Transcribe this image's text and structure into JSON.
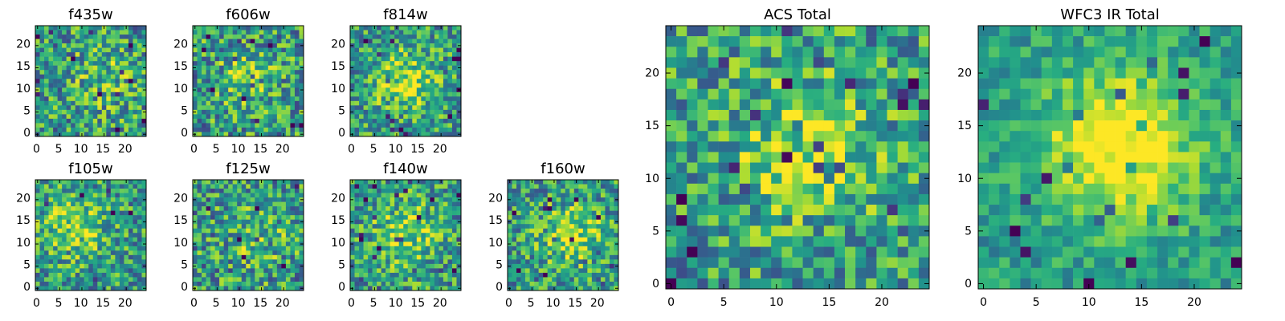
{
  "colors": {
    "colormap": "viridis",
    "axes_frame": "#000000",
    "background": "#ffffff"
  },
  "chart_data": [
    {
      "type": "heatmap",
      "title": "f435w",
      "colormap": "viridis",
      "grid_size": 25,
      "peak_center": [
        15,
        13
      ],
      "signal": "low",
      "xticks": [
        "0",
        "5",
        "10",
        "15",
        "20"
      ],
      "yticks": [
        "0",
        "5",
        "10",
        "15",
        "20"
      ],
      "xlim": [
        0,
        24
      ],
      "ylim": [
        0,
        24
      ]
    },
    {
      "type": "heatmap",
      "title": "f606w",
      "colormap": "viridis",
      "grid_size": 25,
      "peak_center": [
        12,
        13
      ],
      "signal": "low",
      "xticks": [
        "0",
        "5",
        "10",
        "15",
        "20"
      ],
      "yticks": [
        "0",
        "5",
        "10",
        "15",
        "20"
      ],
      "xlim": [
        0,
        24
      ],
      "ylim": [
        0,
        24
      ]
    },
    {
      "type": "heatmap",
      "title": "f814w",
      "colormap": "viridis",
      "grid_size": 25,
      "peak_center": [
        12,
        12
      ],
      "signal": "medium",
      "xticks": [
        "0",
        "5",
        "10",
        "15",
        "20"
      ],
      "yticks": [
        "0",
        "5",
        "10",
        "15",
        "20"
      ],
      "xlim": [
        0,
        24
      ],
      "ylim": [
        0,
        24
      ]
    },
    {
      "type": "heatmap",
      "title": "f105w",
      "colormap": "viridis",
      "grid_size": 25,
      "peak_center": [
        8,
        14
      ],
      "signal": "medium",
      "xticks": [
        "0",
        "5",
        "10",
        "15",
        "20"
      ],
      "yticks": [
        "0",
        "5",
        "10",
        "15",
        "20"
      ],
      "xlim": [
        0,
        24
      ],
      "ylim": [
        0,
        24
      ]
    },
    {
      "type": "heatmap",
      "title": "f125w",
      "colormap": "viridis",
      "grid_size": 25,
      "peak_center": [
        14,
        12
      ],
      "signal": "low",
      "xticks": [
        "0",
        "5",
        "10",
        "15",
        "20"
      ],
      "yticks": [
        "0",
        "5",
        "10",
        "15",
        "20"
      ],
      "xlim": [
        0,
        24
      ],
      "ylim": [
        0,
        24
      ]
    },
    {
      "type": "heatmap",
      "title": "f140w",
      "colormap": "viridis",
      "grid_size": 25,
      "peak_center": [
        12,
        12
      ],
      "signal": "medium",
      "xticks": [
        "0",
        "5",
        "10",
        "15",
        "20"
      ],
      "yticks": [
        "0",
        "5",
        "10",
        "15",
        "20"
      ],
      "xlim": [
        0,
        24
      ],
      "ylim": [
        0,
        24
      ]
    },
    {
      "type": "heatmap",
      "title": "f160w",
      "colormap": "viridis",
      "grid_size": 25,
      "peak_center": [
        14,
        12
      ],
      "signal": "medium",
      "xticks": [
        "0",
        "5",
        "10",
        "15",
        "20"
      ],
      "yticks": [
        "0",
        "5",
        "10",
        "15",
        "20"
      ],
      "xlim": [
        0,
        24
      ],
      "ylim": [
        0,
        24
      ]
    },
    {
      "type": "heatmap",
      "title": "ACS Total",
      "colormap": "viridis",
      "grid_size": 25,
      "peak_center": [
        13,
        13
      ],
      "signal": "medium",
      "xticks": [
        "0",
        "5",
        "10",
        "15",
        "20"
      ],
      "yticks": [
        "0",
        "5",
        "10",
        "15",
        "20"
      ],
      "xlim": [
        0,
        24
      ],
      "ylim": [
        0,
        24
      ]
    },
    {
      "type": "heatmap",
      "title": "WFC3 IR Total",
      "colormap": "viridis",
      "grid_size": 25,
      "peak_center": [
        13,
        13
      ],
      "signal": "high",
      "xticks": [
        "0",
        "5",
        "10",
        "15",
        "20"
      ],
      "yticks": [
        "0",
        "5",
        "10",
        "15",
        "20"
      ],
      "xlim": [
        0,
        24
      ],
      "ylim": [
        0,
        24
      ]
    }
  ]
}
